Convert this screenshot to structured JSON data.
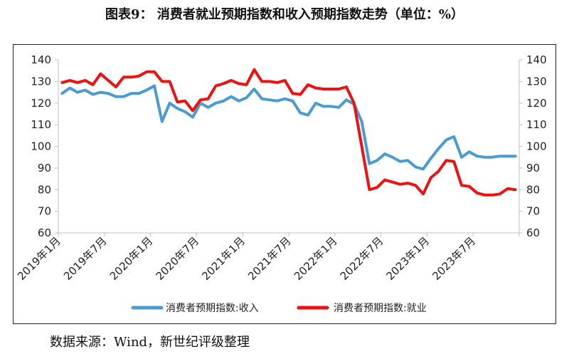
{
  "header": {
    "title": "图表9： 消费者就业预期指数和收入预期指数走势（单位：%）"
  },
  "footer": {
    "source": "数据来源：Wind，新世纪评级整理"
  },
  "colors": {
    "income": "#4a9bd4",
    "employment": "#ee1111",
    "axis": "#bfbfbf"
  },
  "chart_data": {
    "type": "line",
    "title": "图表9： 消费者就业预期指数和收入预期指数走势（单位：%）",
    "xlabel": "",
    "ylabel": "",
    "ylim": [
      60,
      140
    ],
    "y2lim": [
      60,
      140
    ],
    "yticks": [
      60,
      70,
      80,
      90,
      100,
      110,
      120,
      130,
      140
    ],
    "xtick_labels": [
      "2019年1月",
      "2019年7月",
      "2020年1月",
      "2020年7月",
      "2021年1月",
      "2021年7月",
      "2022年1月",
      "2022年7月",
      "2023年1月",
      "2023年7月"
    ],
    "x": [
      "2019-01",
      "2019-02",
      "2019-03",
      "2019-04",
      "2019-05",
      "2019-06",
      "2019-07",
      "2019-08",
      "2019-09",
      "2019-10",
      "2019-11",
      "2019-12",
      "2020-01",
      "2020-02",
      "2020-03",
      "2020-04",
      "2020-05",
      "2020-06",
      "2020-07",
      "2020-08",
      "2020-09",
      "2020-10",
      "2020-11",
      "2020-12",
      "2021-01",
      "2021-02",
      "2021-03",
      "2021-04",
      "2021-05",
      "2021-06",
      "2021-07",
      "2021-08",
      "2021-09",
      "2021-10",
      "2021-11",
      "2021-12",
      "2022-01",
      "2022-02",
      "2022-03",
      "2022-04",
      "2022-05",
      "2022-06",
      "2022-07",
      "2022-08",
      "2022-09",
      "2022-10",
      "2022-11",
      "2022-12",
      "2023-01",
      "2023-02",
      "2023-03",
      "2023-04",
      "2023-05",
      "2023-06",
      "2023-07",
      "2023-08",
      "2023-09",
      "2023-10",
      "2023-11",
      "2023-12"
    ],
    "series": [
      {
        "name": "消费者预期指数:收入",
        "values": [
          124.5,
          127,
          125,
          126,
          124,
          125,
          124.5,
          123,
          123,
          124.5,
          124.5,
          126,
          128,
          111.5,
          120,
          117.5,
          116,
          113.5,
          120,
          118,
          120,
          121,
          123,
          121,
          122.5,
          126.5,
          122,
          121.5,
          121,
          122,
          121,
          115.5,
          114.5,
          120,
          118.5,
          118.5,
          118,
          121.5,
          119.5,
          111.5,
          92,
          93.5,
          96.5,
          95,
          93,
          93.5,
          90.5,
          89.5,
          94.5,
          99,
          103,
          104.5,
          95,
          97.5,
          95.5,
          95,
          95,
          95.5,
          95.5,
          95.5
        ]
      },
      {
        "name": "消费者预期指数:就业",
        "values": [
          129.5,
          130.5,
          129.5,
          130.5,
          128.5,
          133.5,
          130.5,
          127.5,
          132,
          132,
          132.5,
          134.5,
          134.5,
          130,
          130,
          120.5,
          121,
          116.5,
          121.5,
          122,
          128,
          129,
          130.5,
          129,
          128.5,
          135.5,
          130,
          130,
          129.5,
          130.5,
          124.5,
          124,
          128.5,
          127,
          126.5,
          126.5,
          126.5,
          127.5,
          120,
          100,
          80,
          81,
          84.5,
          83.5,
          82.5,
          83,
          82,
          78,
          85.5,
          88.5,
          93.5,
          93,
          82,
          81.5,
          78.5,
          77.5,
          77.5,
          78,
          80.5,
          80
        ]
      }
    ],
    "legend": "bottom-center"
  }
}
